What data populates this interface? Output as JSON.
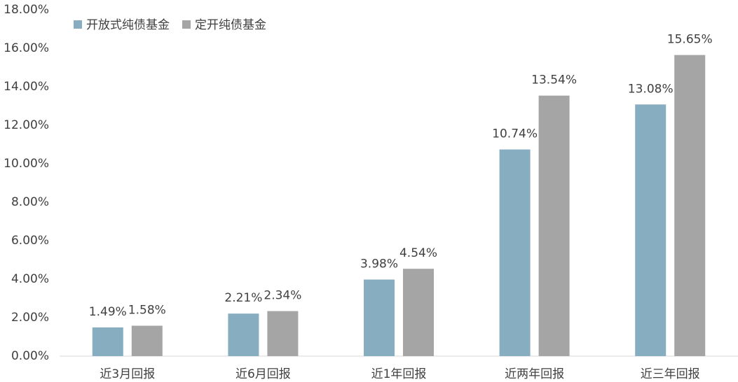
{
  "chart_data": {
    "type": "bar",
    "categories": [
      "近3月回报",
      "近6月回报",
      "近1年回报",
      "近两年回报",
      "近三年回报"
    ],
    "series": [
      {
        "name": "开放式纯债基金",
        "color": "#87adc0",
        "values": [
          1.49,
          2.21,
          3.98,
          10.74,
          13.08
        ],
        "value_labels": [
          "1.49%",
          "2.21%",
          "3.98%",
          "10.74%",
          "13.08%"
        ]
      },
      {
        "name": "定开纯债基金",
        "color": "#a5a5a5",
        "values": [
          1.58,
          2.34,
          4.54,
          13.54,
          15.65
        ],
        "value_labels": [
          "1.58%",
          "2.34%",
          "4.54%",
          "13.54%",
          "15.65%"
        ]
      }
    ],
    "ylim": [
      0,
      18
    ],
    "yticks": [
      {
        "value": 0,
        "label": "0.00%"
      },
      {
        "value": 2,
        "label": "2.00%"
      },
      {
        "value": 4,
        "label": "4.00%"
      },
      {
        "value": 6,
        "label": "6.00%"
      },
      {
        "value": 8,
        "label": "8.00%"
      },
      {
        "value": 10,
        "label": "10.00%"
      },
      {
        "value": 12,
        "label": "12.00%"
      },
      {
        "value": 14,
        "label": "14.00%"
      },
      {
        "value": 16,
        "label": "16.00%"
      },
      {
        "value": 18,
        "label": "18.00%"
      }
    ],
    "grid": false,
    "legend": "top-left"
  }
}
